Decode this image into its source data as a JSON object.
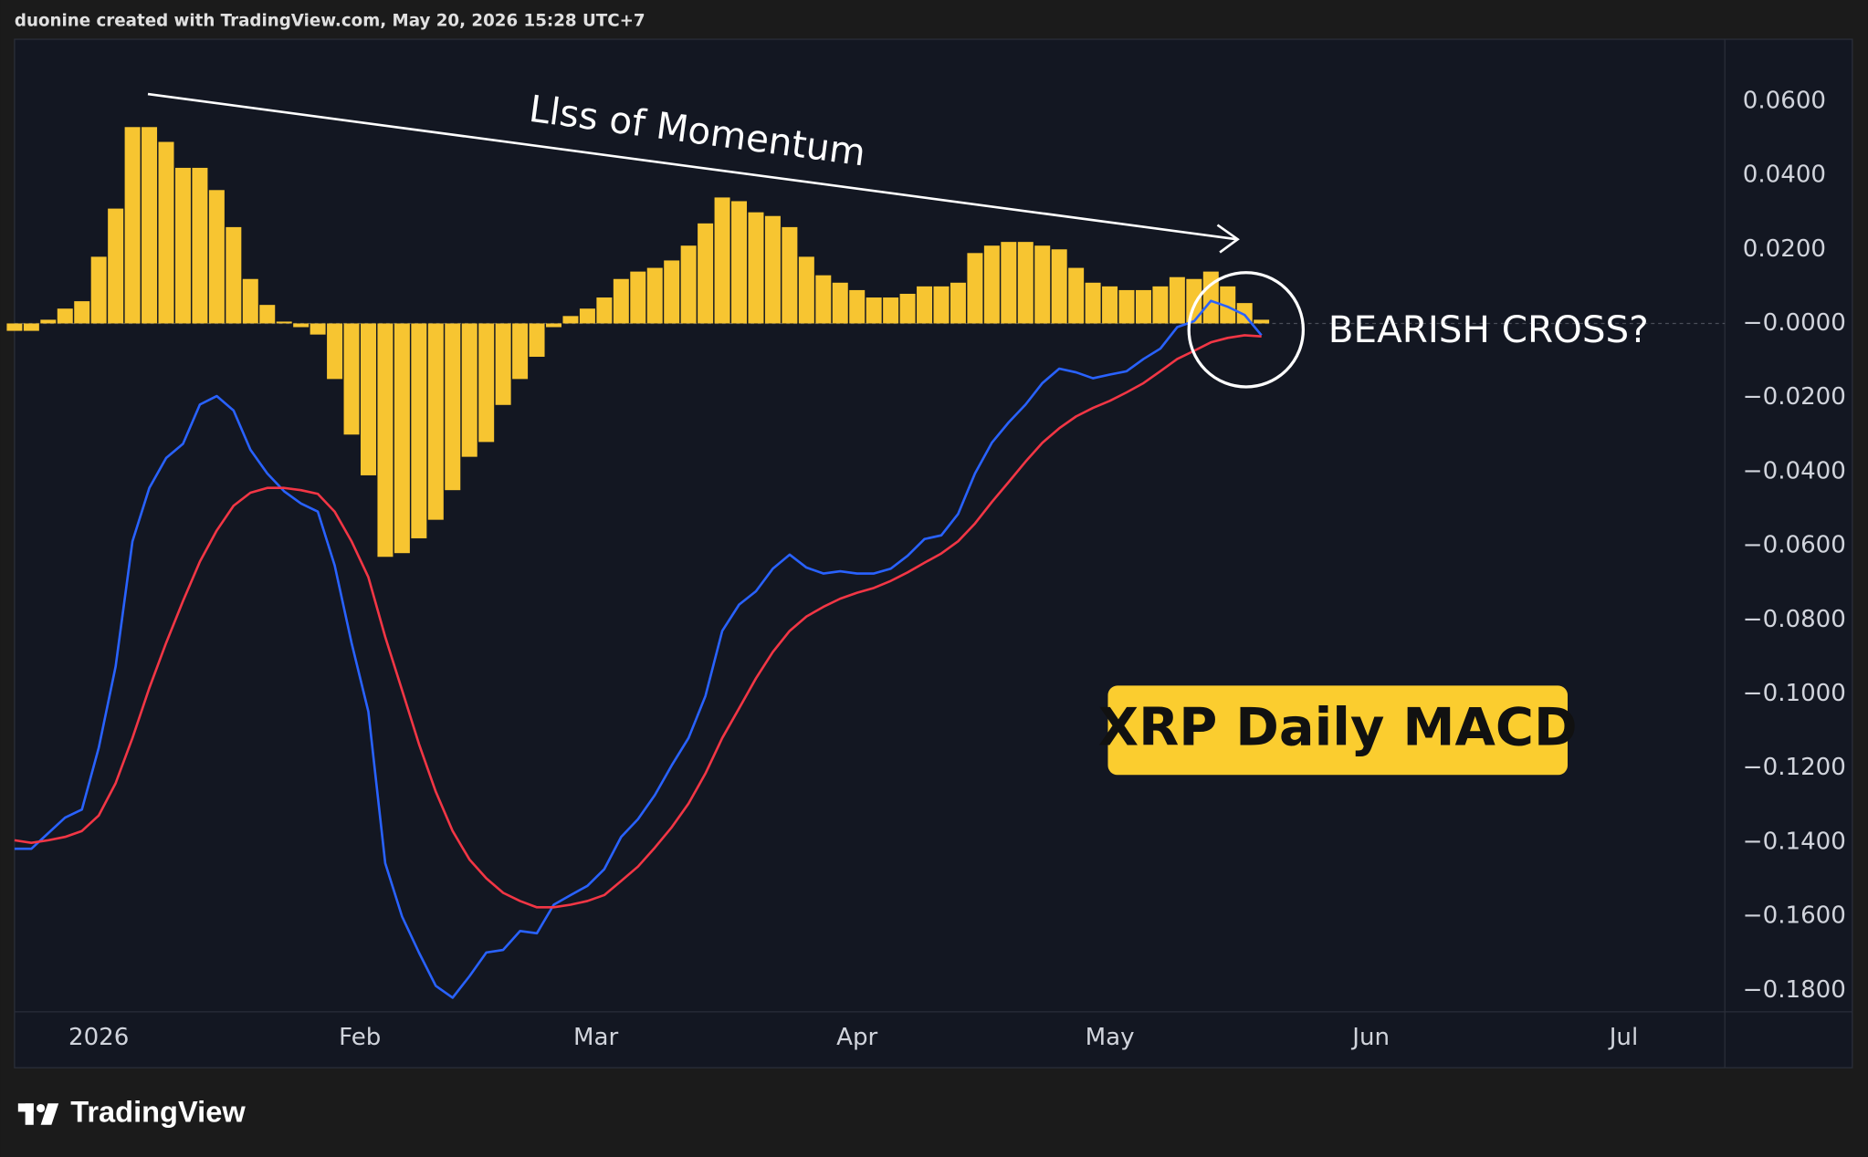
{
  "header": "duonine created with TradingView.com, May 20, 2026 15:28 UTC+7",
  "footer": "TradingView",
  "chart_data": {
    "type": "line",
    "title": "XRP Daily MACD",
    "annotations": [
      "Llss of Momentum",
      "BEARISH CROSS?"
    ],
    "xlim": [
      -10,
      193
    ],
    "xticks": [
      {
        "value": 0,
        "label": "2026"
      },
      {
        "value": 31,
        "label": "Feb"
      },
      {
        "value": 59,
        "label": "Mar"
      },
      {
        "value": 90,
        "label": "Apr"
      },
      {
        "value": 120,
        "label": "May"
      },
      {
        "value": 151,
        "label": "Jun"
      },
      {
        "value": 181,
        "label": "Jul"
      }
    ],
    "ylim": [
      -0.1858,
      0.0767
    ],
    "yticks": [
      {
        "value": 0.06,
        "label": "0.0600"
      },
      {
        "value": 0.04,
        "label": "0.0400"
      },
      {
        "value": 0.02,
        "label": "0.0200"
      },
      {
        "value": 0,
        "label": "−0.0000"
      },
      {
        "value": -0.02,
        "label": "−0.0200"
      },
      {
        "value": -0.04,
        "label": "−0.0400"
      },
      {
        "value": -0.06,
        "label": "−0.0600"
      },
      {
        "value": -0.08,
        "label": "−0.0800"
      },
      {
        "value": -0.1,
        "label": "−0.1000"
      },
      {
        "value": -0.12,
        "label": "−0.1200"
      },
      {
        "value": -0.14,
        "label": "−0.1400"
      },
      {
        "value": -0.16,
        "label": "−0.1600"
      },
      {
        "value": -0.18,
        "label": "−0.1800"
      }
    ],
    "grid": false,
    "x": [
      -10,
      -8,
      -6,
      -4,
      -2,
      0,
      2,
      4,
      6,
      8,
      10,
      12,
      14,
      16,
      18,
      20,
      22,
      24,
      26,
      28,
      30,
      32,
      34,
      36,
      38,
      40,
      42,
      44,
      46,
      48,
      50,
      52,
      54,
      56,
      58,
      60,
      62,
      64,
      66,
      68,
      70,
      72,
      74,
      76,
      78,
      80,
      82,
      84,
      86,
      88,
      90,
      92,
      94,
      96,
      98,
      100,
      102,
      104,
      106,
      108,
      110,
      112,
      114,
      116,
      118,
      120,
      122,
      124,
      126,
      128,
      130,
      132,
      134,
      136,
      138
    ],
    "series": [
      {
        "type": "bar",
        "color": "#f7c531",
        "values": [
          -0.002,
          -0.002,
          0.001,
          0.004,
          0.006,
          0.018,
          0.031,
          0.053,
          0.053,
          0.049,
          0.042,
          0.042,
          0.036,
          0.026,
          0.012,
          0.005,
          0.0005,
          -0.001,
          -0.003,
          -0.015,
          -0.03,
          -0.041,
          -0.063,
          -0.062,
          -0.058,
          -0.053,
          -0.045,
          -0.036,
          -0.032,
          -0.022,
          -0.015,
          -0.009,
          -0.001,
          0.002,
          0.004,
          0.007,
          0.012,
          0.014,
          0.015,
          0.017,
          0.021,
          0.027,
          0.034,
          0.033,
          0.03,
          0.029,
          0.026,
          0.018,
          0.013,
          0.011,
          0.009,
          0.007,
          0.007,
          0.008,
          0.01,
          0.01,
          0.011,
          0.019,
          0.021,
          0.022,
          0.022,
          0.021,
          0.02,
          0.015,
          0.011,
          0.01,
          0.009,
          0.009,
          0.01,
          0.0125,
          0.012,
          0.014,
          0.01,
          0.0055,
          0.001
        ]
      },
      {
        "type": "line",
        "color": "#2962ff",
        "values": [
          -0.1418,
          -0.1418,
          -0.1376,
          -0.1334,
          -0.1312,
          -0.1145,
          -0.0926,
          -0.0588,
          -0.0444,
          -0.0363,
          -0.0325,
          -0.0219,
          -0.0196,
          -0.0235,
          -0.0341,
          -0.0405,
          -0.0453,
          -0.0486,
          -0.0508,
          -0.0653,
          -0.0862,
          -0.1048,
          -0.1457,
          -0.1601,
          -0.1698,
          -0.1788,
          -0.182,
          -0.1762,
          -0.1698,
          -0.1691,
          -0.164,
          -0.1646,
          -0.1569,
          -0.1543,
          -0.1518,
          -0.1473,
          -0.1386,
          -0.1338,
          -0.1273,
          -0.1193,
          -0.1119,
          -0.1006,
          -0.083,
          -0.0759,
          -0.0723,
          -0.0662,
          -0.0624,
          -0.0659,
          -0.0675,
          -0.0669,
          -0.0675,
          -0.0675,
          -0.0662,
          -0.0627,
          -0.0582,
          -0.0572,
          -0.0514,
          -0.0405,
          -0.0322,
          -0.0267,
          -0.0219,
          -0.0161,
          -0.0122,
          -0.0132,
          -0.0148,
          -0.0138,
          -0.0129,
          -0.0096,
          -0.0068,
          -0.001,
          0.0006,
          0.0061,
          0.0045,
          0.0023,
          -0.0032
        ]
      },
      {
        "type": "line",
        "color": "#f23645",
        "values": [
          -0.1395,
          -0.1402,
          -0.1395,
          -0.1386,
          -0.137,
          -0.1328,
          -0.1241,
          -0.1119,
          -0.0984,
          -0.0862,
          -0.0749,
          -0.0643,
          -0.0559,
          -0.0492,
          -0.0457,
          -0.0444,
          -0.0444,
          -0.045,
          -0.046,
          -0.0508,
          -0.0588,
          -0.0685,
          -0.0846,
          -0.099,
          -0.1135,
          -0.1264,
          -0.137,
          -0.1447,
          -0.1498,
          -0.1537,
          -0.1559,
          -0.1576,
          -0.1576,
          -0.1569,
          -0.1559,
          -0.1543,
          -0.1505,
          -0.1466,
          -0.1415,
          -0.136,
          -0.1296,
          -0.1215,
          -0.1119,
          -0.1039,
          -0.0958,
          -0.0887,
          -0.083,
          -0.0791,
          -0.0765,
          -0.0743,
          -0.0727,
          -0.0714,
          -0.0695,
          -0.0672,
          -0.0646,
          -0.0621,
          -0.0588,
          -0.054,
          -0.0482,
          -0.0428,
          -0.0373,
          -0.0322,
          -0.0283,
          -0.0251,
          -0.0228,
          -0.0209,
          -0.0186,
          -0.0161,
          -0.0129,
          -0.0096,
          -0.0074,
          -0.0051,
          -0.0039,
          -0.0032,
          -0.0035
        ]
      }
    ]
  }
}
